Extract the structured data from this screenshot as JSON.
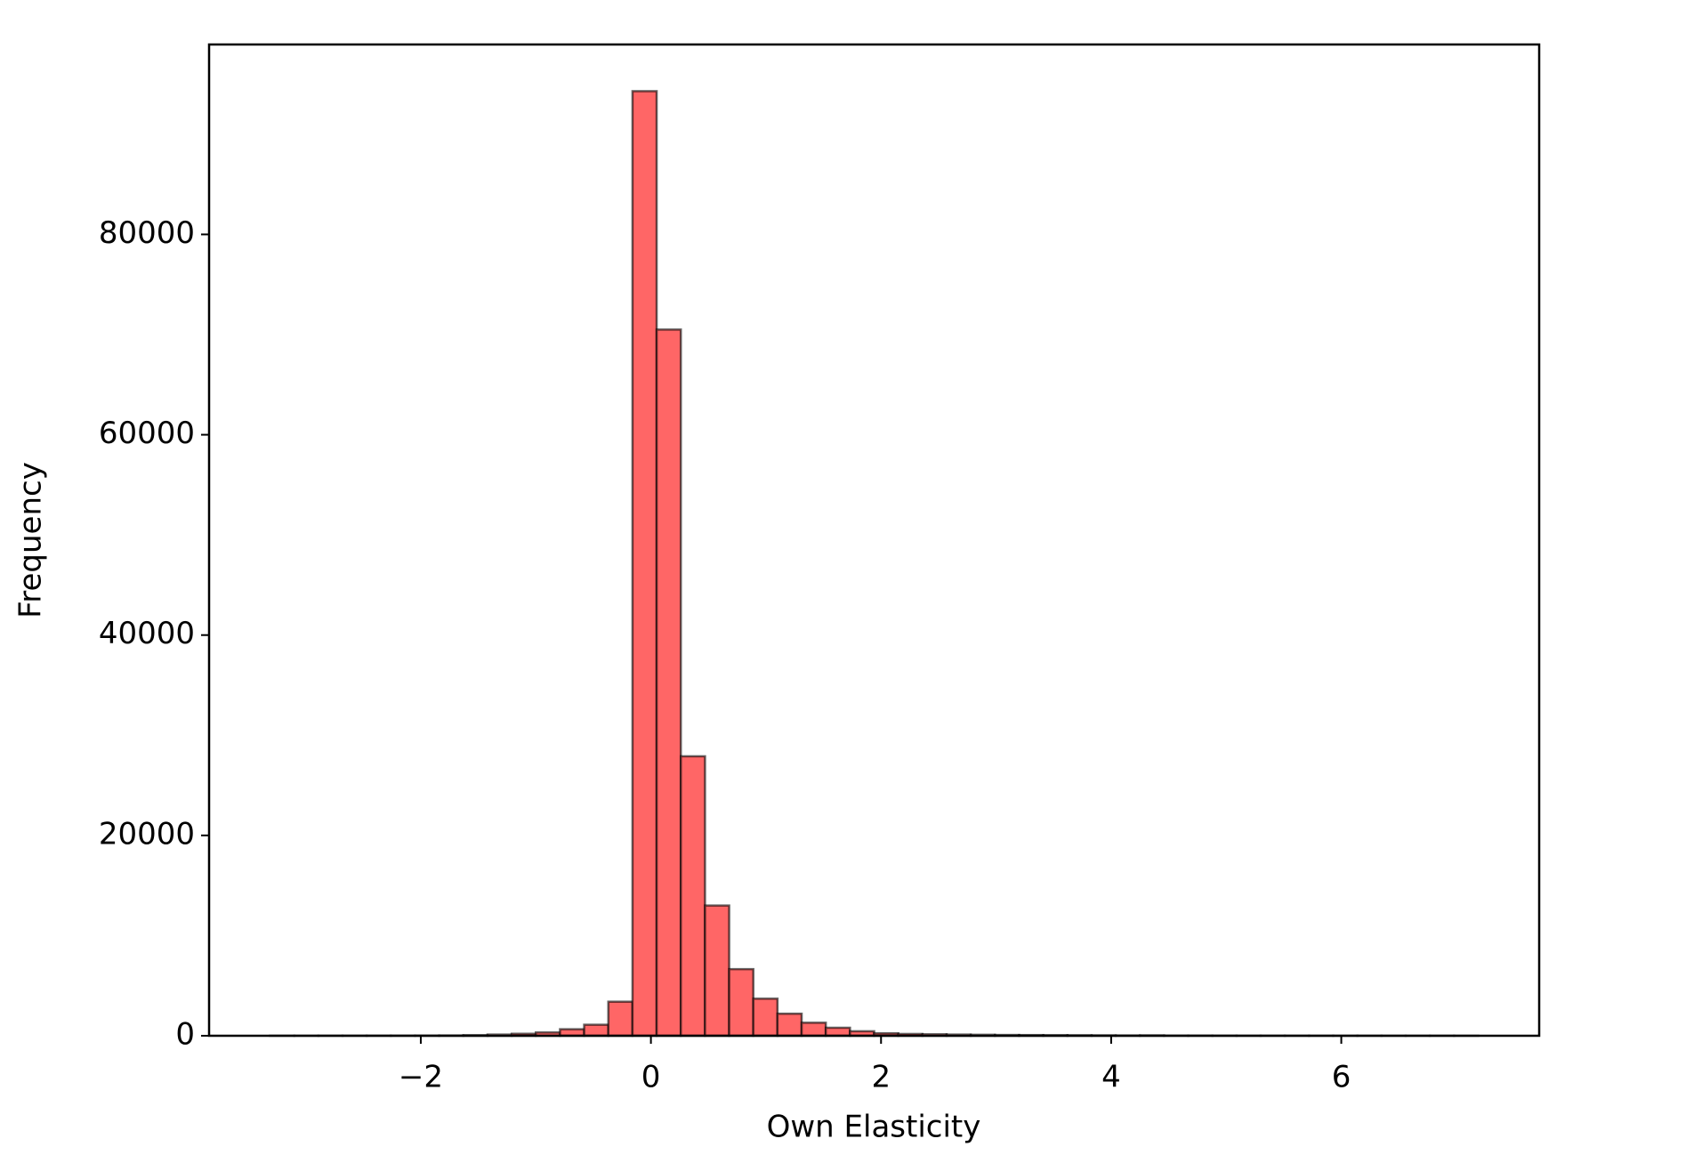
{
  "chart_data": {
    "type": "histogram",
    "xlabel": "Own Elasticity",
    "ylabel": "Frequency",
    "bins": [
      -3.31,
      -3.1,
      -2.89,
      -2.68,
      -2.47,
      -2.26,
      -2.05,
      -1.84,
      -1.63,
      -1.42,
      -1.21,
      -1.0,
      -0.79,
      -0.58,
      -0.37,
      -0.16,
      0.05,
      0.26,
      0.47,
      0.68,
      0.89,
      1.1,
      1.31,
      1.52,
      1.73,
      1.94,
      2.15,
      2.36,
      2.57,
      2.78,
      2.99,
      3.2,
      3.41,
      3.62,
      3.83,
      4.04,
      4.25,
      4.46,
      4.67,
      4.88,
      5.09,
      5.3,
      5.51,
      5.72,
      5.93,
      6.14,
      6.35,
      6.56,
      6.77,
      6.98,
      7.19
    ],
    "values": [
      5,
      5,
      8,
      10,
      12,
      15,
      20,
      30,
      60,
      120,
      200,
      330,
      650,
      1100,
      3400,
      94300,
      70500,
      27900,
      13000,
      6650,
      3700,
      2200,
      1300,
      800,
      450,
      250,
      180,
      150,
      120,
      100,
      80,
      70,
      60,
      50,
      40,
      30,
      40,
      20,
      20,
      15,
      10,
      10,
      8,
      6,
      5,
      4,
      3,
      2,
      2,
      1
    ],
    "color": "#ff6666",
    "edgecolor": "#000000",
    "xlim": [
      -3.84,
      7.72
    ],
    "ylim": [
      0,
      98960
    ],
    "xticks": [
      {
        "value": -2,
        "label": "−2"
      },
      0,
      2,
      4,
      6
    ],
    "yticks": [
      0,
      20000,
      40000,
      60000,
      80000
    ],
    "grid": false
  }
}
